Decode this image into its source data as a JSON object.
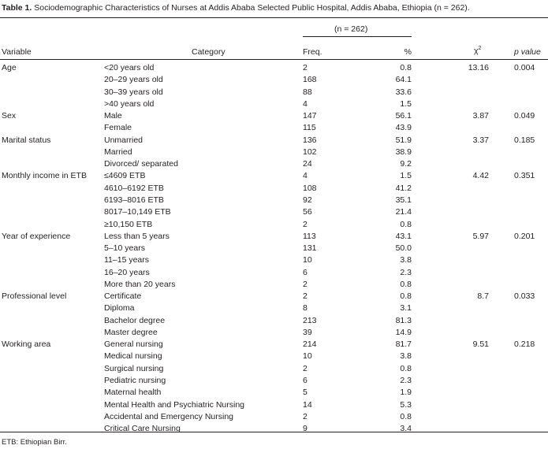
{
  "caption": {
    "label": "Table 1.",
    "text": "Sociodemographic Characteristics of Nurses at Addis Ababa Selected Public Hospital, Addis Ababa, Ethiopia (n = 262)."
  },
  "header": {
    "group": "(n = 262)",
    "variable": "Variable",
    "category": "Category",
    "freq": "Freq.",
    "pct": "%",
    "chi": "χ",
    "chi_sup": "2",
    "p": "p value"
  },
  "rows": [
    {
      "variable": "Age",
      "category": "<20 years old",
      "freq": "2",
      "pct": "0.8",
      "chi": "13.16",
      "p": "0.004"
    },
    {
      "variable": "",
      "category": "20–29 years old",
      "freq": "168",
      "pct": "64.1",
      "chi": "",
      "p": ""
    },
    {
      "variable": "",
      "category": "30–39 years old",
      "freq": "88",
      "pct": "33.6",
      "chi": "",
      "p": ""
    },
    {
      "variable": "",
      "category": ">40 years old",
      "freq": "4",
      "pct": "1.5",
      "chi": "",
      "p": ""
    },
    {
      "variable": "Sex",
      "category": "Male",
      "freq": "147",
      "pct": "56.1",
      "chi": "3.87",
      "p": "0.049"
    },
    {
      "variable": "",
      "category": "Female",
      "freq": "115",
      "pct": "43.9",
      "chi": "",
      "p": ""
    },
    {
      "variable": "Marital status",
      "category": " Unmarried",
      "freq": "136",
      "pct": "51.9",
      "chi": "3.37",
      "p": "0.185"
    },
    {
      "variable": "",
      "category": " Married",
      "freq": "102",
      "pct": "38.9",
      "chi": "",
      "p": ""
    },
    {
      "variable": "",
      "category": "Divorced/ separated",
      "freq": "24",
      "pct": "9.2",
      "chi": "",
      "p": ""
    },
    {
      "variable": "Monthly income in ETB",
      "category": "≤4609 ETB",
      "freq": "4",
      "pct": "1.5",
      "chi": "4.42",
      "p": "0.351"
    },
    {
      "variable": "",
      "category": "4610–6192 ETB",
      "freq": "108",
      "pct": "41.2",
      "chi": "",
      "p": ""
    },
    {
      "variable": "",
      "category": "6193–8016 ETB",
      "freq": "92",
      "pct": "35.1",
      "chi": "",
      "p": ""
    },
    {
      "variable": "",
      "category": "8017–10,149 ETB",
      "freq": "56",
      "pct": "21.4",
      "chi": "",
      "p": ""
    },
    {
      "variable": "",
      "category": "≥10,150 ETB",
      "freq": "2",
      "pct": "0.8",
      "chi": "",
      "p": ""
    },
    {
      "variable": "Year of experience",
      "category": "Less than 5 years",
      "freq": "113",
      "pct": "43.1",
      "chi": "5.97",
      "p": "0.201"
    },
    {
      "variable": "",
      "category": "5–10 years",
      "freq": "131",
      "pct": "50.0",
      "chi": "",
      "p": ""
    },
    {
      "variable": "",
      "category": "11–15 years",
      "freq": "10",
      "pct": "3.8",
      "chi": "",
      "p": ""
    },
    {
      "variable": "",
      "category": "16–20 years",
      "freq": "6",
      "pct": "2.3",
      "chi": "",
      "p": ""
    },
    {
      "variable": "",
      "category": "More than 20 years",
      "freq": "2",
      "pct": "0.8",
      "chi": "",
      "p": ""
    },
    {
      "variable": "Professional level",
      "category": "Certificate",
      "freq": "2",
      "pct": "0.8",
      "chi": "8.7",
      "p": "0.033"
    },
    {
      "variable": "",
      "category": "Diploma",
      "freq": "8",
      "pct": "3.1",
      "chi": "",
      "p": ""
    },
    {
      "variable": "",
      "category": "Bachelor degree",
      "freq": "213",
      "pct": "81.3",
      "chi": "",
      "p": ""
    },
    {
      "variable": "",
      "category": "Master degree",
      "freq": "39",
      "pct": "14.9",
      "chi": "",
      "p": ""
    },
    {
      "variable": "Working area",
      "category": "General nursing",
      "freq": "214",
      "pct": "81.7",
      "chi": "9.51",
      "p": "0.218"
    },
    {
      "variable": "",
      "category": "Medical nursing",
      "freq": "10",
      "pct": "3.8",
      "chi": "",
      "p": ""
    },
    {
      "variable": "",
      "category": "Surgical nursing",
      "freq": "2",
      "pct": "0.8",
      "chi": "",
      "p": ""
    },
    {
      "variable": "",
      "category": "Pediatric nursing",
      "freq": "6",
      "pct": "2.3",
      "chi": "",
      "p": ""
    },
    {
      "variable": "",
      "category": "Maternal health",
      "freq": "5",
      "pct": "1.9",
      "chi": "",
      "p": ""
    },
    {
      "variable": "",
      "category": "Mental Health and Psychiatric Nursing",
      "freq": "14",
      "pct": "5.3",
      "chi": "",
      "p": ""
    },
    {
      "variable": "",
      "category": "Accidental and Emergency Nursing",
      "freq": "2",
      "pct": "0.8",
      "chi": "",
      "p": ""
    },
    {
      "variable": "",
      "category": "Critical Care Nursing",
      "freq": "9",
      "pct": "3.4",
      "chi": "",
      "p": ""
    }
  ],
  "footnote": "ETB: Ethiopian Birr."
}
